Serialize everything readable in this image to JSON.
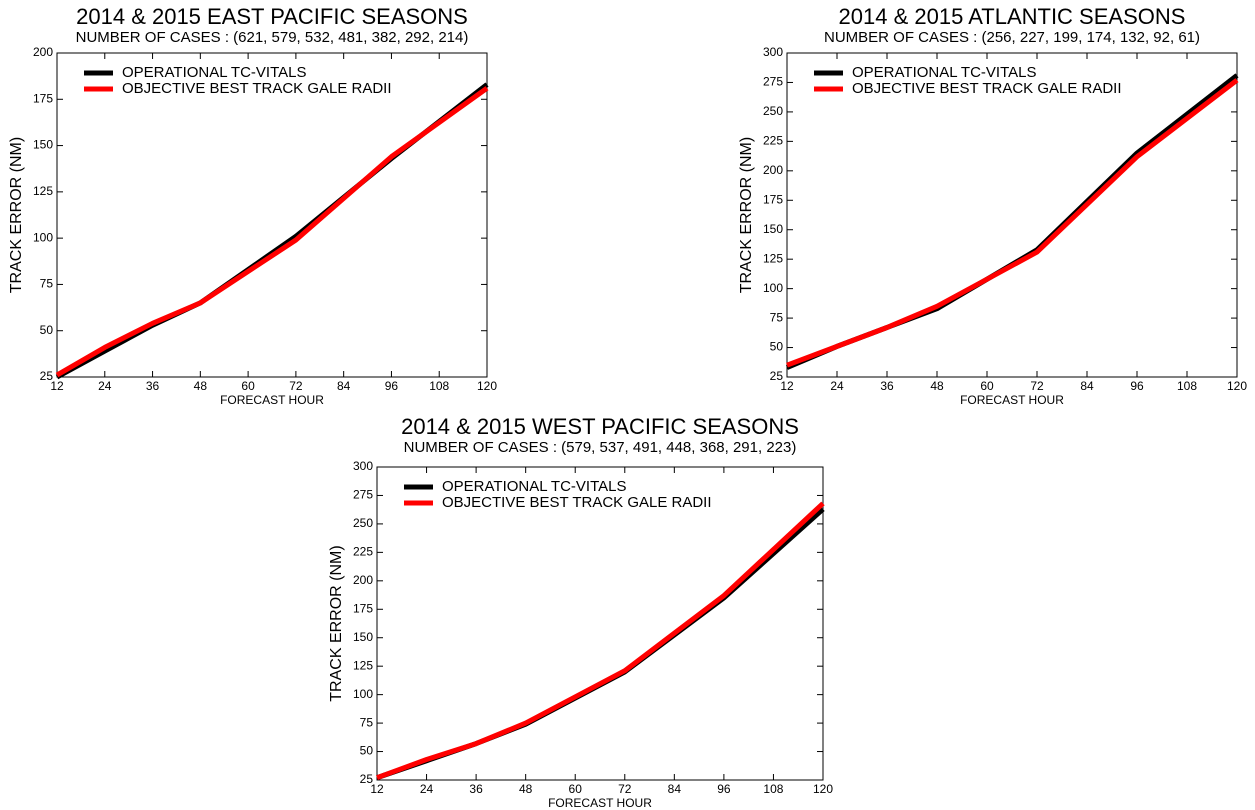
{
  "chart_data": [
    {
      "type": "line",
      "title": "2014 & 2015 EAST PACIFIC SEASONS",
      "subtitle": "NUMBER OF CASES : (621, 579, 532, 481, 382, 292, 214)",
      "x_label": "FORECAST HOUR",
      "y_label": "TRACK ERROR  (NM)",
      "x": [
        12,
        24,
        36,
        48,
        72,
        96,
        120
      ],
      "series": [
        {
          "name": "OPERATIONAL TC-VITALS",
          "color": "#000000",
          "values": [
            25,
            39,
            53,
            65,
            101,
            143,
            183
          ]
        },
        {
          "name": "OBJECTIVE BEST TRACK GALE RADII",
          "color": "#ff0000",
          "values": [
            26,
            41,
            54,
            65,
            99,
            144,
            181
          ]
        }
      ],
      "xlim": [
        12,
        120
      ],
      "xticks": [
        12,
        24,
        36,
        48,
        60,
        72,
        84,
        96,
        108,
        120
      ],
      "ylim": [
        25,
        200
      ],
      "yticks": [
        25,
        50,
        75,
        100,
        125,
        150,
        175,
        200
      ],
      "legend": "top-left"
    },
    {
      "type": "line",
      "title": "2014 & 2015 ATLANTIC SEASONS",
      "subtitle": "NUMBER OF CASES : (256, 227, 199, 174, 132, 92, 61)",
      "x_label": "FORECAST HOUR",
      "y_label": "TRACK ERROR  (NM)",
      "x": [
        12,
        24,
        36,
        48,
        72,
        96,
        120
      ],
      "series": [
        {
          "name": "OPERATIONAL TC-VITALS",
          "color": "#000000",
          "values": [
            33,
            51,
            67,
            83,
            133,
            215,
            281
          ]
        },
        {
          "name": "OBJECTIVE BEST TRACK GALE RADII",
          "color": "#ff0000",
          "values": [
            35,
            51,
            67,
            85,
            131,
            212,
            277
          ]
        }
      ],
      "xlim": [
        12,
        120
      ],
      "xticks": [
        12,
        24,
        36,
        48,
        60,
        72,
        84,
        96,
        108,
        120
      ],
      "ylim": [
        25,
        300
      ],
      "yticks": [
        25,
        50,
        75,
        100,
        125,
        150,
        175,
        200,
        225,
        250,
        275,
        300
      ],
      "legend": "top-left"
    },
    {
      "type": "line",
      "title": "2014 & 2015 WEST PACIFIC SEASONS",
      "subtitle": "NUMBER OF CASES : (579, 537, 491, 448, 368, 291, 223)",
      "x_label": "FORECAST HOUR",
      "y_label": "TRACK ERROR  (NM)",
      "x": [
        12,
        24,
        36,
        48,
        72,
        96,
        120
      ],
      "series": [
        {
          "name": "OPERATIONAL TC-VITALS",
          "color": "#000000",
          "values": [
            27,
            42,
            57,
            74,
            120,
            185,
            263
          ]
        },
        {
          "name": "OBJECTIVE BEST TRACK GALE RADII",
          "color": "#ff0000",
          "values": [
            27,
            43,
            57,
            75,
            121,
            187,
            268
          ]
        }
      ],
      "xlim": [
        12,
        120
      ],
      "xticks": [
        12,
        24,
        36,
        48,
        60,
        72,
        84,
        96,
        108,
        120
      ],
      "ylim": [
        25,
        300
      ],
      "yticks": [
        25,
        50,
        75,
        100,
        125,
        150,
        175,
        200,
        225,
        250,
        275,
        300
      ],
      "legend": "top-left"
    }
  ]
}
